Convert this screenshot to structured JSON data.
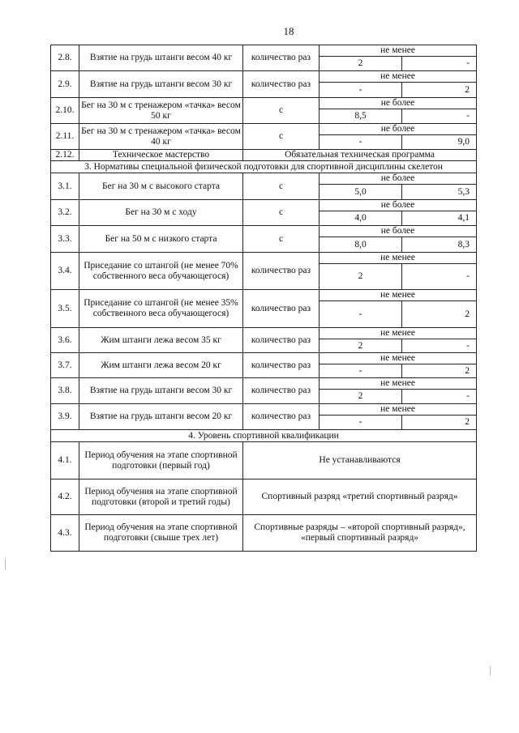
{
  "page_number": "18",
  "rows": [
    {
      "type": "norm",
      "num": "2.8.",
      "name": "Взятие на грудь штанги весом 40 кг",
      "unit": "количество раз",
      "cond": "не менее",
      "v1": "2",
      "v2": "-"
    },
    {
      "type": "norm",
      "num": "2.9.",
      "name": "Взятие на грудь штанги весом 30 кг",
      "unit": "количество раз",
      "cond": "не менее",
      "v1": "-",
      "v2": "2"
    },
    {
      "type": "norm",
      "num": "2.10.",
      "name": "Бег на 30 м с тренажером «тачка» весом 50 кг",
      "unit": "с",
      "cond": "не более",
      "v1": "8,5",
      "v2": "-"
    },
    {
      "type": "norm",
      "num": "2.11.",
      "name": "Бег на 30 м с тренажером «тачка» весом 40 кг",
      "unit": "с",
      "cond": "не более",
      "v1": "-",
      "v2": "9,0"
    },
    {
      "type": "tech",
      "num": "2.12.",
      "name": "Техническое мастерство",
      "value": "Обязательная техническая программа"
    },
    {
      "type": "section",
      "title": "3. Нормативы специальной физической подготовки для спортивной дисциплины скелетон"
    },
    {
      "type": "norm",
      "num": "3.1.",
      "name": "Бег на 30 м с высокого старта",
      "unit": "с",
      "cond": "не более",
      "v1": "5,0",
      "v2": "5,3"
    },
    {
      "type": "norm",
      "num": "3.2.",
      "name": "Бег на 30 м с ходу",
      "unit": "с",
      "cond": "не более",
      "v1": "4,0",
      "v2": "4,1"
    },
    {
      "type": "norm",
      "num": "3.3.",
      "name": "Бег на 50 м с низкого старта",
      "unit": "с",
      "cond": "не более",
      "v1": "8,0",
      "v2": "8,3"
    },
    {
      "type": "norm",
      "num": "3.4.",
      "name": "Приседание со штангой (не менее 70% собственного веса обучающегося)",
      "unit": "количество раз",
      "cond": "не менее",
      "v1": "2",
      "v2": "-"
    },
    {
      "type": "norm",
      "num": "3.5.",
      "name": "Приседание со штангой (не менее 35% собственного веса обучающегося)",
      "unit": "количество раз",
      "cond": "не менее",
      "v1": "-",
      "v2": "2"
    },
    {
      "type": "norm",
      "num": "3.6.",
      "name": "Жим штанги лежа весом 35 кг",
      "unit": "количество раз",
      "cond": "не менее",
      "v1": "2",
      "v2": "-"
    },
    {
      "type": "norm",
      "num": "3.7.",
      "name": "Жим штанги лежа весом 20 кг",
      "unit": "количество раз",
      "cond": "не менее",
      "v1": "-",
      "v2": "2"
    },
    {
      "type": "norm",
      "num": "3.8.",
      "name": "Взятие на грудь штанги весом 30 кг",
      "unit": "количество раз",
      "cond": "не менее",
      "v1": "2",
      "v2": "-"
    },
    {
      "type": "norm",
      "num": "3.9.",
      "name": "Взятие на грудь штанги весом 20 кг",
      "unit": "количество раз",
      "cond": "не менее",
      "v1": "-",
      "v2": "2"
    },
    {
      "type": "section",
      "title": "4. Уровень спортивной квалификации"
    },
    {
      "type": "qual",
      "num": "4.1.",
      "name": "Период обучения на этапе спортивной подготовки (первый год)",
      "value": "Не устанавливаются"
    },
    {
      "type": "qual",
      "num": "4.2.",
      "name": "Период обучения на этапе спортивной подготовки (второй и третий годы)",
      "value": "Спортивный разряд «третий спортивный разряд»"
    },
    {
      "type": "qual",
      "num": "4.3.",
      "name": "Период обучения на этапе спортивной подготовки (свыше трех лет)",
      "value": "Спортивные разряды – «второй спортивный разряд», «первый спортивный разряд»"
    }
  ]
}
